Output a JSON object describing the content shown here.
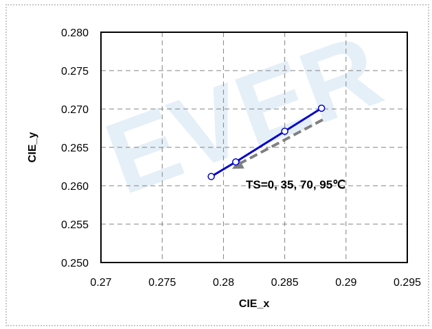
{
  "chart_data": {
    "type": "line",
    "title": "",
    "xlabel": "CIE_x",
    "ylabel": "CIE_y",
    "xlim": [
      0.27,
      0.295
    ],
    "ylim": [
      0.25,
      0.28
    ],
    "x_ticks": [
      "0.27",
      "0.275",
      "0.28",
      "0.285",
      "0.29",
      "0.295"
    ],
    "y_ticks": [
      "0.280",
      "0.275",
      "0.270",
      "0.265",
      "0.260",
      "0.255",
      "0.250"
    ],
    "grid": true,
    "series": [
      {
        "x": [
          0.279,
          0.281,
          0.285,
          0.288
        ],
        "y": [
          0.2612,
          0.2631,
          0.2671,
          0.2701
        ],
        "color": "#0000cc"
      }
    ],
    "annotation": {
      "text": "TS=0, 35, 70, 95℃",
      "arrow_color": "#808080"
    },
    "watermark_text": "EVER",
    "watermark_color": "#cfe2f3"
  }
}
